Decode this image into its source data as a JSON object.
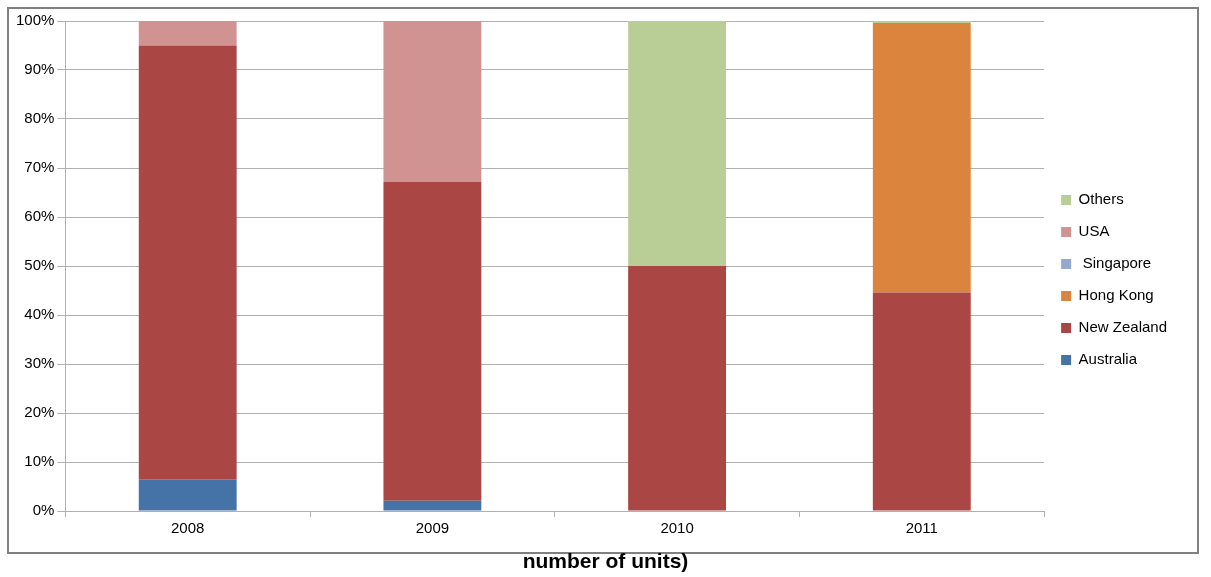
{
  "chart_data": {
    "type": "bar",
    "stacked": true,
    "categories": [
      "2008",
      "2009",
      "2010",
      "2011"
    ],
    "series": [
      {
        "name": "Australia",
        "color": "#4572a7",
        "values": [
          6.5,
          2.1,
          0,
          0
        ]
      },
      {
        "name": "New Zealand",
        "color": "#aa4643",
        "values": [
          88.5,
          65.1,
          50,
          44.6
        ]
      },
      {
        "name": "Hong Kong",
        "color": "#db843d",
        "values": [
          0,
          0,
          0,
          55
        ]
      },
      {
        "name": " Singapore",
        "color": "#93a9cf",
        "values": [
          0,
          0,
          0,
          0
        ]
      },
      {
        "name": "USA",
        "color": "#d19392",
        "values": [
          5,
          32.8,
          0,
          0
        ]
      },
      {
        "name": "Others",
        "color": "#b9cd96",
        "values": [
          0,
          0,
          50,
          0.4
        ]
      }
    ],
    "ylim": [
      0,
      100
    ],
    "yticks": [
      {
        "value": 0,
        "label": "0%"
      },
      {
        "value": 10,
        "label": "10%"
      },
      {
        "value": 20,
        "label": "20%"
      },
      {
        "value": 30,
        "label": "30%"
      },
      {
        "value": 40,
        "label": "40%"
      },
      {
        "value": 50,
        "label": "50%"
      },
      {
        "value": 60,
        "label": "60%"
      },
      {
        "value": 70,
        "label": "70%"
      },
      {
        "value": 80,
        "label": "80%"
      },
      {
        "value": 90,
        "label": "90%"
      },
      {
        "value": 100,
        "label": "100%"
      }
    ],
    "grid": "y",
    "legend": "right",
    "annotations": [
      "number of units)"
    ]
  }
}
